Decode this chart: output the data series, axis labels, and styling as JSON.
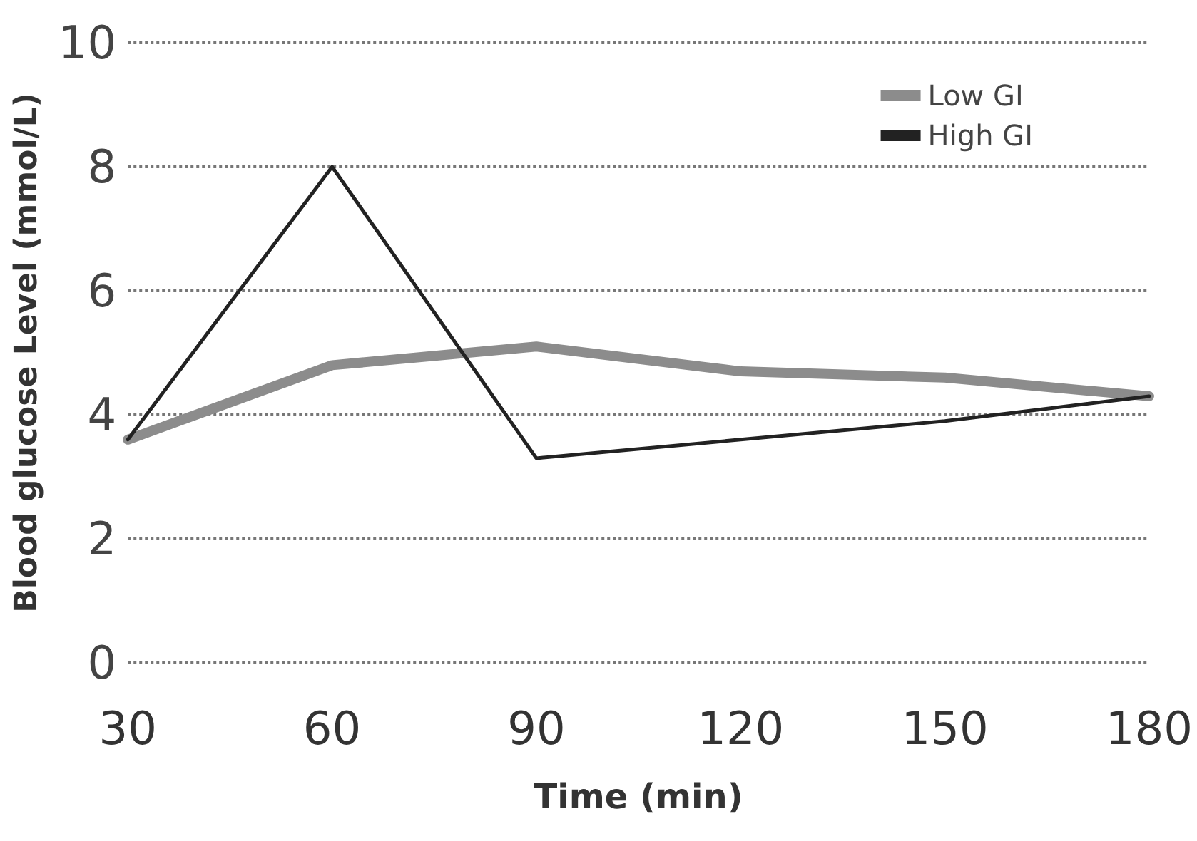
{
  "chart_data": {
    "type": "line",
    "xlabel": "Time (min)",
    "ylabel": "Blood glucose Level (mmol/L)",
    "categories": [
      "30",
      "60",
      "90",
      "120",
      "150",
      "180"
    ],
    "series": [
      {
        "name": "Low GI",
        "color": "#8c8c8c",
        "values": [
          3.6,
          4.8,
          5.1,
          4.7,
          4.6,
          4.3
        ]
      },
      {
        "name": "High GI",
        "color": "#222222",
        "values": [
          3.6,
          8.0,
          3.3,
          3.6,
          3.9,
          4.3
        ]
      }
    ],
    "ylim": [
      0,
      10
    ],
    "yticks": [
      0,
      2,
      4,
      6,
      8,
      10
    ],
    "grid": "y",
    "legend": "top right",
    "marker": "none",
    "line_style": "solid"
  }
}
